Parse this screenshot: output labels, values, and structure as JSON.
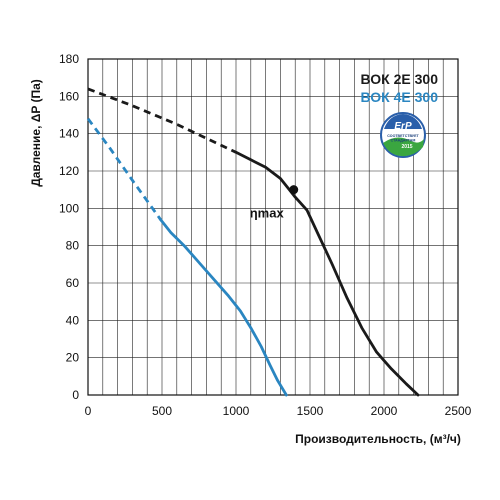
{
  "chart_data": {
    "type": "line",
    "xlabel": "Производительность, (м³/ч)",
    "ylabel": "Давление, ΔP (Па)",
    "xlim": [
      0,
      2500
    ],
    "ylim": [
      0,
      180
    ],
    "xticks": [
      0,
      500,
      1000,
      1500,
      2000,
      2500
    ],
    "yticks": [
      0,
      20,
      40,
      60,
      80,
      100,
      120,
      140,
      160,
      180
    ],
    "grid": true,
    "legend_position": "top-right",
    "series": [
      {
        "name": "ВОК 2Е 300",
        "color": "#1a1a1a",
        "dashed_points": [
          [
            0,
            164
          ],
          [
            300,
            155
          ],
          [
            600,
            145
          ],
          [
            1000,
            130
          ]
        ],
        "solid_points": [
          [
            1000,
            130
          ],
          [
            1100,
            126
          ],
          [
            1200,
            122
          ],
          [
            1300,
            116
          ],
          [
            1350,
            111
          ],
          [
            1400,
            106
          ],
          [
            1480,
            99
          ],
          [
            1550,
            87
          ],
          [
            1650,
            70
          ],
          [
            1750,
            52
          ],
          [
            1850,
            36
          ],
          [
            1950,
            23
          ],
          [
            2050,
            14
          ],
          [
            2150,
            6
          ],
          [
            2230,
            0
          ]
        ]
      },
      {
        "name": "ВОК 4Е 300",
        "color": "#2a86c1",
        "dashed_points": [
          [
            0,
            148
          ],
          [
            150,
            132
          ],
          [
            300,
            115
          ],
          [
            490,
            94
          ]
        ],
        "solid_points": [
          [
            490,
            94
          ],
          [
            560,
            87
          ],
          [
            650,
            80
          ],
          [
            750,
            71
          ],
          [
            850,
            62
          ],
          [
            950,
            53
          ],
          [
            1030,
            45
          ],
          [
            1100,
            36
          ],
          [
            1170,
            26
          ],
          [
            1230,
            16
          ],
          [
            1280,
            8
          ],
          [
            1340,
            0
          ]
        ]
      }
    ],
    "annotations": [
      {
        "text": "ηmax",
        "x": 1390,
        "y": 110
      }
    ]
  },
  "badge": {
    "title": "ErP",
    "line1": "СООТВЕТСТВУЕТ",
    "line2": "СТАНДАРТАМ",
    "year": "2015"
  }
}
